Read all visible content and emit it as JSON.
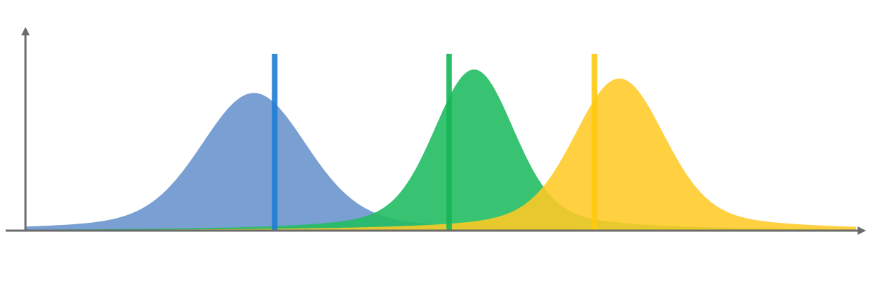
{
  "chart_data": {
    "type": "area",
    "title": "",
    "xlabel": "",
    "ylabel": "",
    "grid": false,
    "legend": "none",
    "xlim": [
      0,
      100
    ],
    "ylim": [
      0,
      100
    ],
    "series": [
      {
        "peak_x": 27.5,
        "peak_y": 76,
        "marker_x": 30.0,
        "marker_top": 108,
        "color": "#6B95CD",
        "marker_color": "#1F7DD4"
      },
      {
        "peak_x": 54.0,
        "peak_y": 89,
        "marker_x": 51.0,
        "marker_top": 108,
        "color": "#22BC63",
        "marker_color": "#14B655"
      },
      {
        "peak_x": 71.5,
        "peak_y": 84,
        "marker_x": 68.5,
        "marker_top": 108,
        "color": "#FFC924",
        "marker_color": "#FFC90E"
      }
    ],
    "axis_color": "#6B6B6B"
  }
}
